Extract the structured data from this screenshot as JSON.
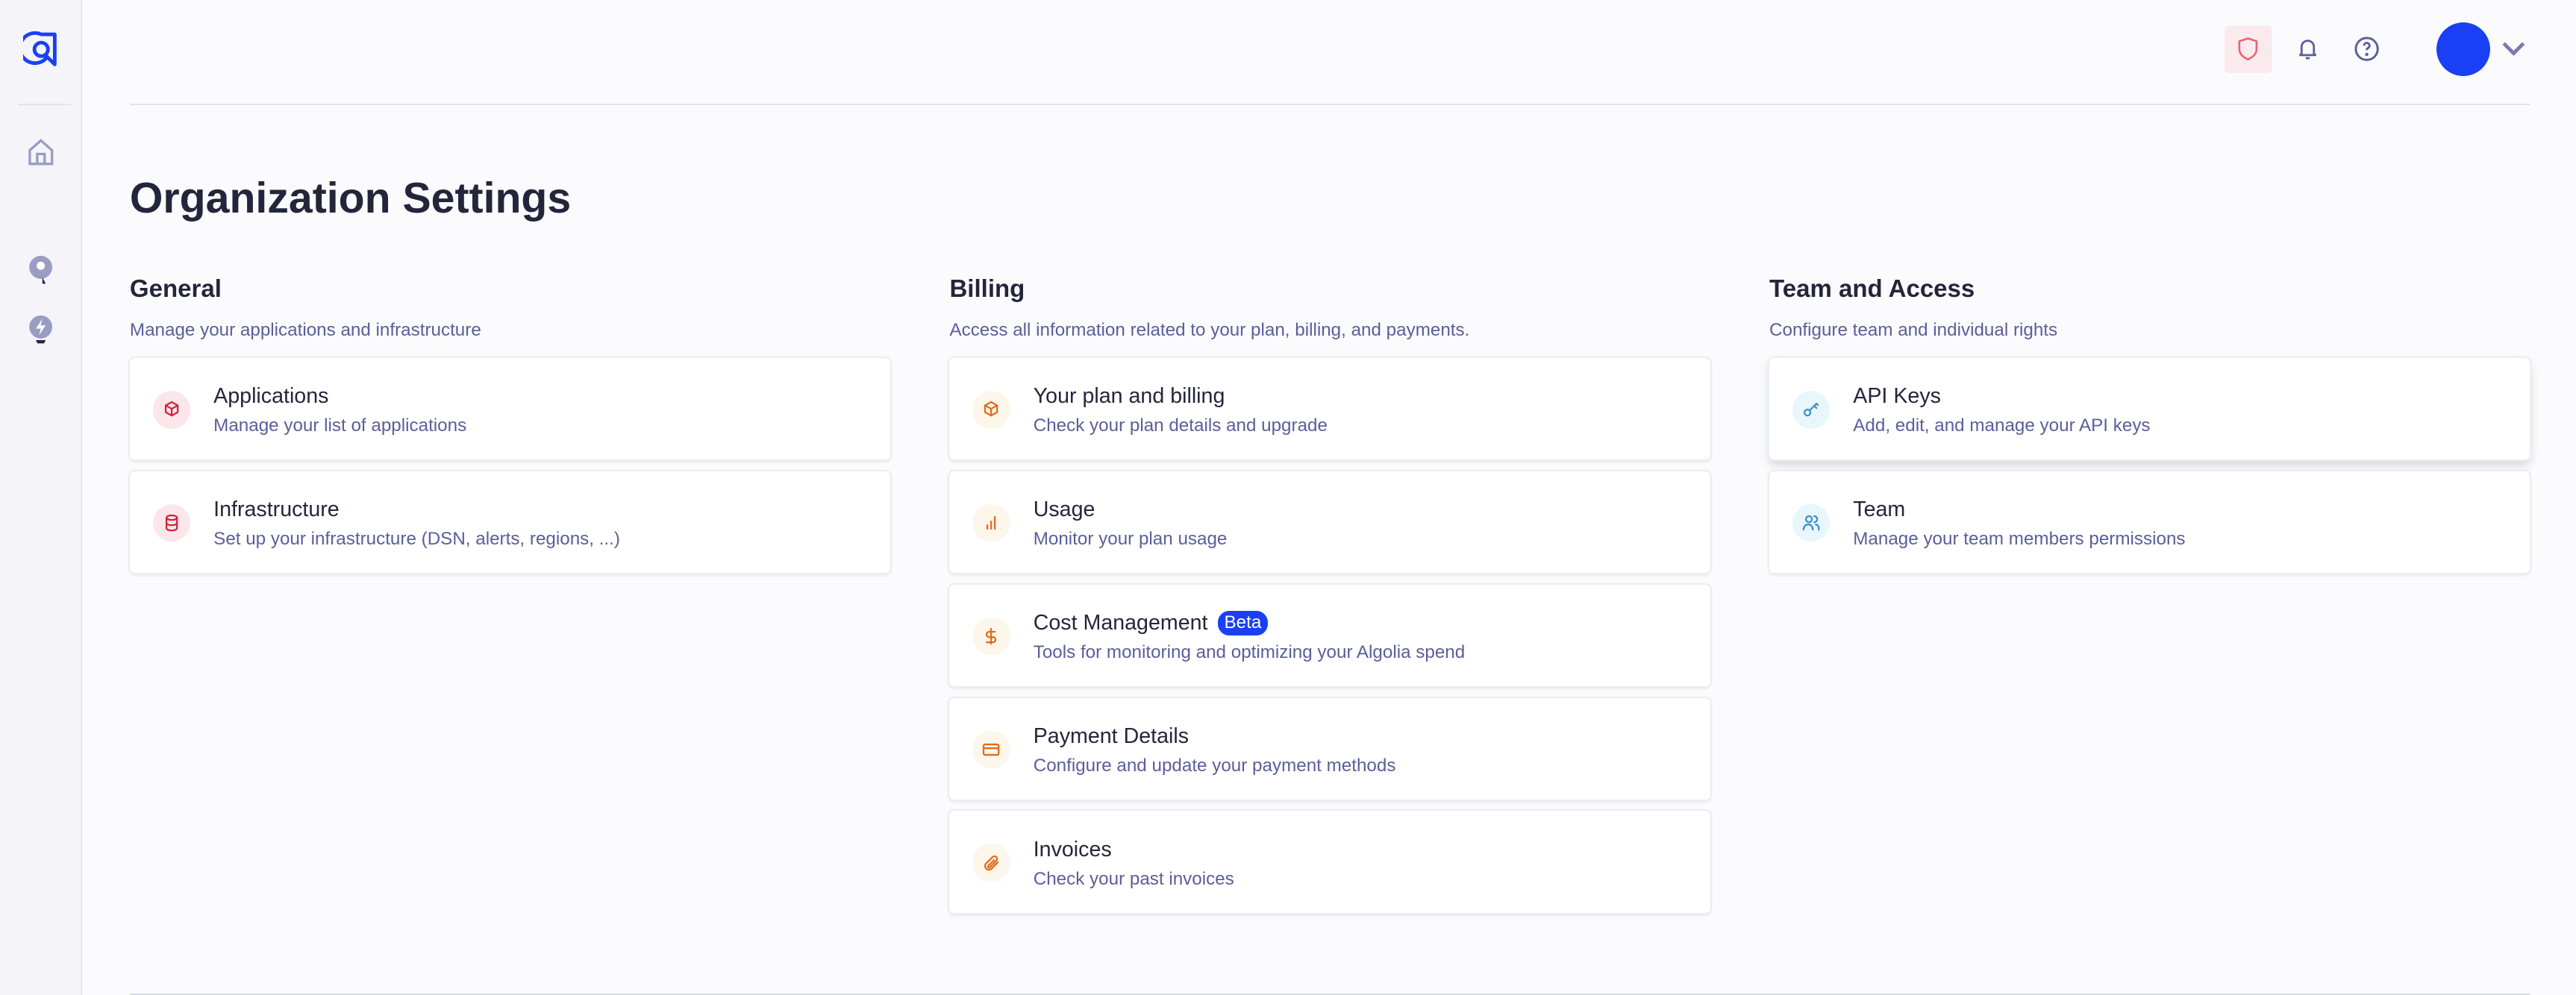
{
  "page_title": "Organization Settings",
  "colors": {
    "brand": "#1a40f5",
    "general": "#d02139",
    "billing": "#e06a1b",
    "team": "#3a8fc9"
  },
  "topbar": {
    "icons": [
      "shield-icon",
      "bell-icon",
      "help-icon",
      "avatar",
      "chevron-down-icon"
    ]
  },
  "sidebar": {
    "icons": [
      "algolia-logo",
      "home-icon",
      "search-pin-icon",
      "bolt-pin-icon"
    ]
  },
  "sections": [
    {
      "key": "general",
      "title": "General",
      "subtitle": "Manage your applications and infrastructure",
      "cards": [
        {
          "icon": "cube-icon",
          "title": "Applications",
          "subtitle": "Manage your list of applications"
        },
        {
          "icon": "database-icon",
          "title": "Infrastructure",
          "subtitle": "Set up your infrastructure (DSN, alerts, regions, ...)"
        }
      ]
    },
    {
      "key": "billing",
      "title": "Billing",
      "subtitle": "Access all information related to your plan, billing, and payments.",
      "cards": [
        {
          "icon": "cube-icon",
          "title": "Your plan and billing",
          "subtitle": "Check your plan details and upgrade"
        },
        {
          "icon": "bar-chart-icon",
          "title": "Usage",
          "subtitle": "Monitor your plan usage"
        },
        {
          "icon": "dollar-icon",
          "title": "Cost Management",
          "badge": "Beta",
          "subtitle": "Tools for monitoring and optimizing your Algolia spend"
        },
        {
          "icon": "credit-card-icon",
          "title": "Payment Details",
          "subtitle": "Configure and update your payment methods"
        },
        {
          "icon": "paperclip-icon",
          "title": "Invoices",
          "subtitle": "Check your past invoices"
        }
      ]
    },
    {
      "key": "team",
      "title": "Team and Access",
      "subtitle": "Configure team and individual rights",
      "cards": [
        {
          "icon": "key-icon",
          "title": "API Keys",
          "subtitle": "Add, edit, and manage your API keys",
          "hover": true
        },
        {
          "icon": "users-icon",
          "title": "Team",
          "subtitle": "Manage your team members permissions"
        }
      ]
    }
  ]
}
